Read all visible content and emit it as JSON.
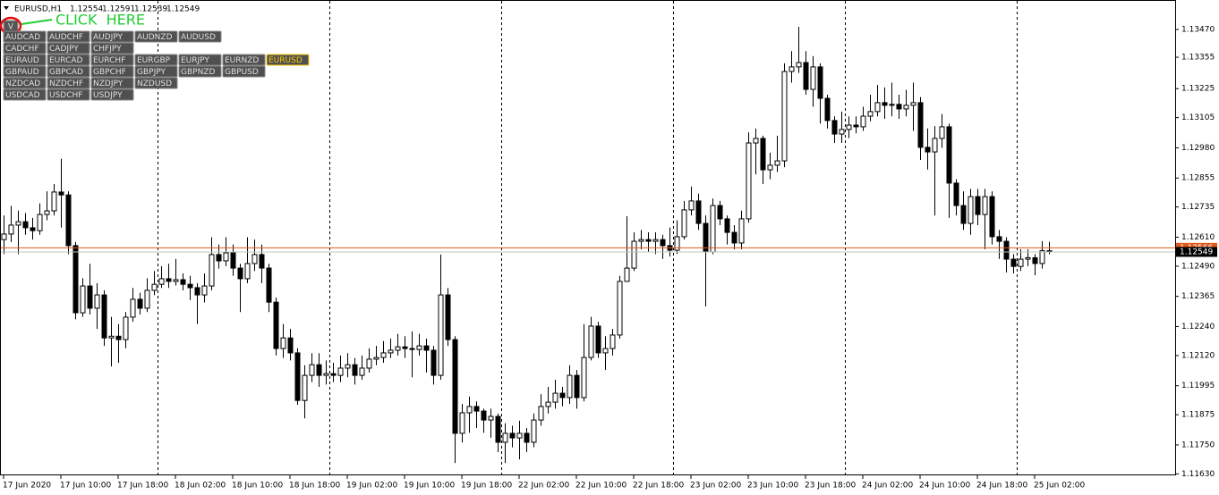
{
  "chart_data": {
    "type": "candlestick",
    "title": "EURUSD,H1",
    "ylim": [
      1.11624,
      1.13592
    ],
    "yticks": [
      {
        "value": 1.1347,
        "label": "1.13470"
      },
      1.13355,
      1.13225,
      1.13105,
      {
        "value": 1.1298,
        "label": "1.12980"
      },
      1.12855,
      1.12735,
      {
        "value": 1.1261,
        "label": "1.12610"
      },
      {
        "value": 1.1249,
        "label": "1.12490"
      },
      1.12365,
      {
        "value": 1.1224,
        "label": "1.12240"
      },
      {
        "value": 1.1212,
        "label": "1.12120"
      },
      1.11995,
      1.11875,
      {
        "value": 1.1175,
        "label": "1.11750"
      },
      {
        "value": 1.1163,
        "label": "1.11630"
      }
    ],
    "grid": false,
    "bull_color": "#ffffff",
    "bear_color": "#000000",
    "price_lines": [
      {
        "value": 1.12566,
        "color": "#e0591c"
      },
      {
        "value": 1.12549,
        "color": "#c0c0c0"
      }
    ],
    "categories": [
      "17 Jun 2020",
      null,
      null,
      null,
      null,
      null,
      null,
      null,
      "17 Jun 10:00",
      null,
      null,
      null,
      null,
      null,
      null,
      null,
      "17 Jun 18:00",
      null,
      null,
      null,
      null,
      null,
      null,
      null,
      "18 Jun 02:00",
      null,
      null,
      null,
      null,
      null,
      null,
      null,
      "18 Jun 10:00",
      null,
      null,
      null,
      null,
      null,
      null,
      null,
      "18 Jun 18:00",
      null,
      null,
      null,
      null,
      null,
      null,
      null,
      "19 Jun 02:00",
      null,
      null,
      null,
      null,
      null,
      null,
      null,
      "19 Jun 10:00",
      null,
      null,
      null,
      null,
      null,
      null,
      null,
      "19 Jun 18:00",
      null,
      null,
      null,
      null,
      null,
      null,
      null,
      "22 Jun 02:00",
      null,
      null,
      null,
      null,
      null,
      null,
      null,
      "22 Jun 10:00",
      null,
      null,
      null,
      null,
      null,
      null,
      null,
      "22 Jun 18:00",
      null,
      null,
      null,
      null,
      null,
      null,
      null,
      "23 Jun 02:00",
      null,
      null,
      null,
      null,
      null,
      null,
      null,
      "23 Jun 10:00",
      null,
      null,
      null,
      null,
      null,
      null,
      null,
      "23 Jun 18:00",
      null,
      null,
      null,
      null,
      null,
      null,
      null,
      "24 Jun 02:00",
      null,
      null,
      null,
      null,
      null,
      null,
      null,
      "24 Jun 10:00",
      null,
      null,
      null,
      null,
      null,
      null,
      null,
      "24 Jun 18:00",
      null,
      null,
      null,
      null,
      null,
      null,
      null,
      "25 Jun 02:00",
      null,
      null
    ],
    "ohlc": [
      [
        1.126,
        1.127,
        1.1254,
        1.12623
      ],
      [
        1.12623,
        1.1274,
        1.1259,
        1.1266
      ],
      [
        1.1266,
        1.1272,
        1.1254,
        1.12674
      ],
      [
        1.12674,
        1.1271,
        1.1262,
        1.12649
      ],
      [
        1.12649,
        1.1269,
        1.126,
        1.12637
      ],
      [
        1.12637,
        1.1275,
        1.1262,
        1.12704
      ],
      [
        1.12704,
        1.128,
        1.1268,
        1.12719
      ],
      [
        1.12719,
        1.1283,
        1.127,
        1.12797
      ],
      [
        1.12797,
        1.12935,
        1.1265,
        1.12785
      ],
      [
        1.12785,
        1.128,
        1.1254,
        1.12575
      ],
      [
        1.12575,
        1.1259,
        1.1227,
        1.12297
      ],
      [
        1.12297,
        1.1244,
        1.1228,
        1.12408
      ],
      [
        1.12408,
        1.125,
        1.1229,
        1.12316
      ],
      [
        1.12316,
        1.1242,
        1.1223,
        1.12371
      ],
      [
        1.12371,
        1.1239,
        1.1216,
        1.12193
      ],
      [
        1.12193,
        1.1228,
        1.12075,
        1.122
      ],
      [
        1.122,
        1.1225,
        1.1209,
        1.12186
      ],
      [
        1.12186,
        1.123,
        1.1215,
        1.12279
      ],
      [
        1.12279,
        1.124,
        1.1226,
        1.12353
      ],
      [
        1.12353,
        1.1238,
        1.1229,
        1.12316
      ],
      [
        1.12316,
        1.1244,
        1.123,
        1.1239
      ],
      [
        1.1239,
        1.1247,
        1.1237,
        1.12415
      ],
      [
        1.12415,
        1.1249,
        1.124,
        1.12438
      ],
      [
        1.12438,
        1.125,
        1.124,
        1.12427
      ],
      [
        1.12427,
        1.1252,
        1.1241,
        1.12434
      ],
      [
        1.12434,
        1.1246,
        1.1239,
        1.12415
      ],
      [
        1.12415,
        1.1245,
        1.1235,
        1.12401
      ],
      [
        1.12401,
        1.1242,
        1.1225,
        1.12371
      ],
      [
        1.12371,
        1.1246,
        1.1234,
        1.12408
      ],
      [
        1.12408,
        1.1261,
        1.1239,
        1.12538
      ],
      [
        1.12538,
        1.1258,
        1.1248,
        1.12512
      ],
      [
        1.12512,
        1.1261,
        1.1249,
        1.12545
      ],
      [
        1.12545,
        1.1258,
        1.1245,
        1.12482
      ],
      [
        1.12482,
        1.125,
        1.123,
        1.12438
      ],
      [
        1.12438,
        1.1261,
        1.1242,
        1.12501
      ],
      [
        1.12501,
        1.126,
        1.1247,
        1.12538
      ],
      [
        1.12538,
        1.1258,
        1.1242,
        1.12482
      ],
      [
        1.12482,
        1.125,
        1.123,
        1.12341
      ],
      [
        1.12341,
        1.1236,
        1.1212,
        1.12149
      ],
      [
        1.12149,
        1.1225,
        1.1211,
        1.12193
      ],
      [
        1.12193,
        1.1223,
        1.121,
        1.12131
      ],
      [
        1.12131,
        1.1215,
        1.11916,
        1.11934
      ],
      [
        1.11934,
        1.1208,
        1.1186,
        1.12038
      ],
      [
        1.12038,
        1.1213,
        1.1201,
        1.12082
      ],
      [
        1.12082,
        1.1213,
        1.1199,
        1.12038
      ],
      [
        1.12038,
        1.121,
        1.12,
        1.12045
      ],
      [
        1.12045,
        1.1209,
        1.1201,
        1.12038
      ],
      [
        1.12038,
        1.1212,
        1.1201,
        1.12068
      ],
      [
        1.12068,
        1.1213,
        1.1203,
        1.12082
      ],
      [
        1.12082,
        1.1211,
        1.12,
        1.12038
      ],
      [
        1.12038,
        1.1212,
        1.1202,
        1.12068
      ],
      [
        1.12068,
        1.1215,
        1.1205,
        1.12105
      ],
      [
        1.12105,
        1.1216,
        1.1208,
        1.12112
      ],
      [
        1.12112,
        1.1218,
        1.1209,
        1.12131
      ],
      [
        1.12131,
        1.1219,
        1.1211,
        1.12142
      ],
      [
        1.12142,
        1.1221,
        1.1212,
        1.12156
      ],
      [
        1.12156,
        1.122,
        1.1211,
        1.12149
      ],
      [
        1.12149,
        1.1222,
        1.1203,
        1.12145
      ],
      [
        1.12145,
        1.1221,
        1.1212,
        1.1216
      ],
      [
        1.1216,
        1.1219,
        1.1205,
        1.12142
      ],
      [
        1.12142,
        1.1216,
        1.12,
        1.12038
      ],
      [
        1.12038,
        1.12538,
        1.1202,
        1.12371
      ],
      [
        1.12371,
        1.124,
        1.1216,
        1.12186
      ],
      [
        1.12186,
        1.122,
        1.11675,
        1.11798
      ],
      [
        1.11798,
        1.1192,
        1.1176,
        1.11883
      ],
      [
        1.11883,
        1.1195,
        1.118,
        1.11909
      ],
      [
        1.11909,
        1.1193,
        1.1182,
        1.1189
      ],
      [
        1.1189,
        1.119,
        1.118,
        1.11853
      ],
      [
        1.11853,
        1.119,
        1.1178,
        1.11868
      ],
      [
        1.11868,
        1.1188,
        1.1172,
        1.11761
      ],
      [
        1.11761,
        1.1184,
        1.11675,
        1.11798
      ],
      [
        1.11798,
        1.1183,
        1.1174,
        1.11779
      ],
      [
        1.11779,
        1.1185,
        1.1169,
        1.11798
      ],
      [
        1.11798,
        1.1182,
        1.1172,
        1.11761
      ],
      [
        1.11761,
        1.1188,
        1.1174,
        1.11853
      ],
      [
        1.11853,
        1.1196,
        1.1183,
        1.11909
      ],
      [
        1.11909,
        1.1199,
        1.1188,
        1.11927
      ],
      [
        1.11927,
        1.1202,
        1.119,
        1.11964
      ],
      [
        1.11964,
        1.1199,
        1.1191,
        1.11946
      ],
      [
        1.11946,
        1.1208,
        1.1192,
        1.12038
      ],
      [
        1.12038,
        1.1206,
        1.119,
        1.11946
      ],
      [
        1.11946,
        1.1225,
        1.1193,
        1.12112
      ],
      [
        1.12112,
        1.1228,
        1.121,
        1.12242
      ],
      [
        1.12242,
        1.1226,
        1.1211,
        1.12131
      ],
      [
        1.12131,
        1.122,
        1.1206,
        1.12149
      ],
      [
        1.12149,
        1.1223,
        1.1212,
        1.12205
      ],
      [
        1.12205,
        1.1245,
        1.1219,
        1.12427
      ],
      [
        1.12427,
        1.12697,
        1.1244,
        1.12482
      ],
      [
        1.12482,
        1.1263,
        1.1247,
        1.12593
      ],
      [
        1.12593,
        1.1264,
        1.1256,
        1.126
      ],
      [
        1.126,
        1.1263,
        1.1255,
        1.12593
      ],
      [
        1.12593,
        1.1263,
        1.1254,
        1.126
      ],
      [
        1.126,
        1.1262,
        1.1252,
        1.12575
      ],
      [
        1.12575,
        1.1265,
        1.1253,
        1.12556
      ],
      [
        1.12556,
        1.1268,
        1.1254,
        1.12612
      ],
      [
        1.12612,
        1.1276,
        1.126,
        1.12723
      ],
      [
        1.12723,
        1.1282,
        1.127,
        1.1276
      ],
      [
        1.1276,
        1.1279,
        1.1264,
        1.12667
      ],
      [
        1.12667,
        1.127,
        1.12323,
        1.12549
      ],
      [
        1.12549,
        1.1277,
        1.1254,
        1.12741
      ],
      [
        1.12741,
        1.1276,
        1.1266,
        1.12686
      ],
      [
        1.12686,
        1.127,
        1.1258,
        1.1263
      ],
      [
        1.1263,
        1.1266,
        1.1256,
        1.12586
      ],
      [
        1.12586,
        1.1272,
        1.1256,
        1.12686
      ],
      [
        1.12686,
        1.13044,
        1.1267,
        1.13
      ],
      [
        1.13,
        1.1306,
        1.1287,
        1.13019
      ],
      [
        1.13019,
        1.1303,
        1.1283,
        1.12889
      ],
      [
        1.12889,
        1.1296,
        1.1285,
        1.12908
      ],
      [
        1.12908,
        1.1303,
        1.1288,
        1.12926
      ],
      [
        1.12926,
        1.1333,
        1.129,
        1.13296
      ],
      [
        1.13296,
        1.1338,
        1.1325,
        1.13315
      ],
      [
        1.13315,
        1.13481,
        1.1329,
        1.13333
      ],
      [
        1.13333,
        1.1338,
        1.132,
        1.13222
      ],
      [
        1.13222,
        1.1336,
        1.1315,
        1.13315
      ],
      [
        1.13315,
        1.1333,
        1.1308,
        1.13185
      ],
      [
        1.13185,
        1.132,
        1.1306,
        1.13093
      ],
      [
        1.13093,
        1.1311,
        1.13,
        1.13037
      ],
      [
        1.13037,
        1.1313,
        1.13,
        1.13056
      ],
      [
        1.13056,
        1.1311,
        1.1302,
        1.13074
      ],
      [
        1.13074,
        1.1311,
        1.1304,
        1.13067
      ],
      [
        1.13067,
        1.1315,
        1.1305,
        1.13111
      ],
      [
        1.13111,
        1.132,
        1.1309,
        1.1313
      ],
      [
        1.1313,
        1.1324,
        1.1311,
        1.13167
      ],
      [
        1.13167,
        1.1323,
        1.131,
        1.13156
      ],
      [
        1.13156,
        1.1325,
        1.1311,
        1.1316
      ],
      [
        1.1316,
        1.132,
        1.131,
        1.13141
      ],
      [
        1.13141,
        1.1322,
        1.1311,
        1.13156
      ],
      [
        1.13156,
        1.1325,
        1.1305,
        1.13167
      ],
      [
        1.13167,
        1.1319,
        1.1293,
        1.12982
      ],
      [
        1.12982,
        1.1306,
        1.1289,
        1.12963
      ],
      [
        1.12963,
        1.1307,
        1.127,
        1.13019
      ],
      [
        1.13019,
        1.1312,
        1.1298,
        1.13067
      ],
      [
        1.13067,
        1.1308,
        1.1269,
        1.12834
      ],
      [
        1.12834,
        1.1285,
        1.127,
        1.12741
      ],
      [
        1.12741,
        1.128,
        1.1264,
        1.12667
      ],
      [
        1.12667,
        1.1281,
        1.1262,
        1.12778
      ],
      [
        1.12778,
        1.1281,
        1.1266,
        1.12704
      ],
      [
        1.12704,
        1.1281,
        1.1256,
        1.12778
      ],
      [
        1.12778,
        1.128,
        1.1258,
        1.12612
      ],
      [
        1.12612,
        1.1264,
        1.1252,
        1.12593
      ],
      [
        1.12593,
        1.1261,
        1.12464,
        1.12519
      ],
      [
        1.12519,
        1.1254,
        1.1246,
        1.12489
      ],
      [
        1.12489,
        1.1256,
        1.1247,
        1.12519
      ],
      [
        1.12519,
        1.1256,
        1.1249,
        1.12525
      ],
      [
        1.12525,
        1.1254,
        1.12452,
        1.12501
      ],
      [
        1.12501,
        1.12593,
        1.1248,
        1.12554
      ],
      [
        1.12554,
        1.12591,
        1.12539,
        1.12549
      ]
    ]
  },
  "toggle_button": "V",
  "annotation": "CLICK  HERE",
  "symbol_panel": {
    "active": "EURUSD",
    "rows": [
      [
        "AUDCAD",
        "AUDCHF",
        "AUDJPY",
        "AUDNZD",
        "AUDUSD"
      ],
      [
        "CADCHF",
        "CADJPY",
        "CHFJPY"
      ],
      [
        "EURAUD",
        "EURCAD",
        "EURCHF",
        "EURGBP",
        "EURJPY",
        "EURNZD",
        "EURUSD"
      ],
      [
        "GBPAUD",
        "GBPCAD",
        "GBPCHF",
        "GBPJPY",
        "GBPNZD",
        "GBPUSD"
      ],
      [
        "NZDCAD",
        "NZDCHF",
        "NZDJPY",
        "NZDUSD"
      ],
      [
        "USDCAD",
        "USDCHF",
        "USDJPY"
      ]
    ]
  }
}
